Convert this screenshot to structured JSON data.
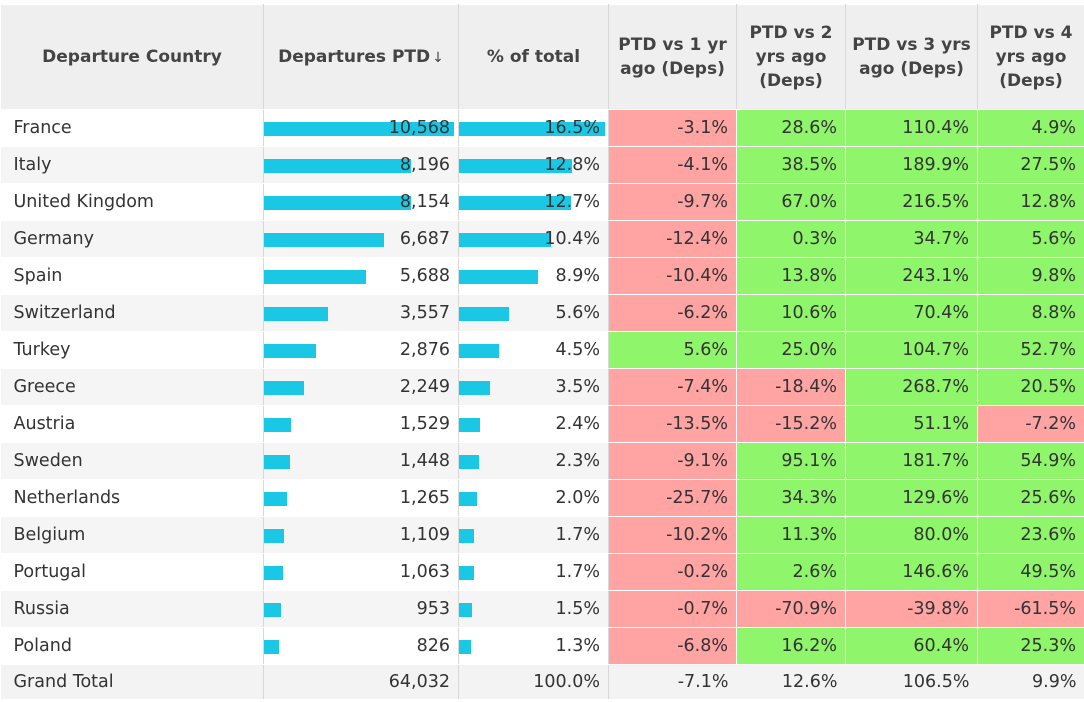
{
  "columns": {
    "country": "Departure Country",
    "departures": "Departures PTD",
    "pct_total": "% of total",
    "vs1": "PTD vs 1 yr ago (Deps)",
    "vs2": "PTD vs 2 yrs ago (Deps)",
    "vs3": "PTD vs 3 yrs ago (Deps)",
    "vs4": "PTD vs 4 yrs ago (Deps)",
    "sort_icon": "sort-descending-icon"
  },
  "rows": [
    {
      "country": "France",
      "departures": "10,568",
      "dep_value": 10568,
      "pct": "16.5%",
      "pct_value": 16.5,
      "vs1": "-3.1%",
      "vs2": "28.6%",
      "vs3": "110.4%",
      "vs4": "4.9%"
    },
    {
      "country": "Italy",
      "departures": "8,196",
      "dep_value": 8196,
      "pct": "12.8%",
      "pct_value": 12.8,
      "vs1": "-4.1%",
      "vs2": "38.5%",
      "vs3": "189.9%",
      "vs4": "27.5%"
    },
    {
      "country": "United Kingdom",
      "departures": "8,154",
      "dep_value": 8154,
      "pct": "12.7%",
      "pct_value": 12.7,
      "vs1": "-9.7%",
      "vs2": "67.0%",
      "vs3": "216.5%",
      "vs4": "12.8%"
    },
    {
      "country": "Germany",
      "departures": "6,687",
      "dep_value": 6687,
      "pct": "10.4%",
      "pct_value": 10.4,
      "vs1": "-12.4%",
      "vs2": "0.3%",
      "vs3": "34.7%",
      "vs4": "5.6%"
    },
    {
      "country": "Spain",
      "departures": "5,688",
      "dep_value": 5688,
      "pct": "8.9%",
      "pct_value": 8.9,
      "vs1": "-10.4%",
      "vs2": "13.8%",
      "vs3": "243.1%",
      "vs4": "9.8%"
    },
    {
      "country": "Switzerland",
      "departures": "3,557",
      "dep_value": 3557,
      "pct": "5.6%",
      "pct_value": 5.6,
      "vs1": "-6.2%",
      "vs2": "10.6%",
      "vs3": "70.4%",
      "vs4": "8.8%"
    },
    {
      "country": "Turkey",
      "departures": "2,876",
      "dep_value": 2876,
      "pct": "4.5%",
      "pct_value": 4.5,
      "vs1": "5.6%",
      "vs2": "25.0%",
      "vs3": "104.7%",
      "vs4": "52.7%"
    },
    {
      "country": "Greece",
      "departures": "2,249",
      "dep_value": 2249,
      "pct": "3.5%",
      "pct_value": 3.5,
      "vs1": "-7.4%",
      "vs2": "-18.4%",
      "vs3": "268.7%",
      "vs4": "20.5%"
    },
    {
      "country": "Austria",
      "departures": "1,529",
      "dep_value": 1529,
      "pct": "2.4%",
      "pct_value": 2.4,
      "vs1": "-13.5%",
      "vs2": "-15.2%",
      "vs3": "51.1%",
      "vs4": "-7.2%"
    },
    {
      "country": "Sweden",
      "departures": "1,448",
      "dep_value": 1448,
      "pct": "2.3%",
      "pct_value": 2.3,
      "vs1": "-9.1%",
      "vs2": "95.1%",
      "vs3": "181.7%",
      "vs4": "54.9%"
    },
    {
      "country": "Netherlands",
      "departures": "1,265",
      "dep_value": 1265,
      "pct": "2.0%",
      "pct_value": 2.0,
      "vs1": "-25.7%",
      "vs2": "34.3%",
      "vs3": "129.6%",
      "vs4": "25.6%"
    },
    {
      "country": "Belgium",
      "departures": "1,109",
      "dep_value": 1109,
      "pct": "1.7%",
      "pct_value": 1.7,
      "vs1": "-10.2%",
      "vs2": "11.3%",
      "vs3": "80.0%",
      "vs4": "23.6%"
    },
    {
      "country": "Portugal",
      "departures": "1,063",
      "dep_value": 1063,
      "pct": "1.7%",
      "pct_value": 1.7,
      "vs1": "-0.2%",
      "vs2": "2.6%",
      "vs3": "146.6%",
      "vs4": "49.5%"
    },
    {
      "country": "Russia",
      "departures": "953",
      "dep_value": 953,
      "pct": "1.5%",
      "pct_value": 1.5,
      "vs1": "-0.7%",
      "vs2": "-70.9%",
      "vs3": "-39.8%",
      "vs4": "-61.5%"
    },
    {
      "country": "Poland",
      "departures": "826",
      "dep_value": 826,
      "pct": "1.3%",
      "pct_value": 1.3,
      "vs1": "-6.8%",
      "vs2": "16.2%",
      "vs3": "60.4%",
      "vs4": "25.3%"
    }
  ],
  "total": {
    "country": "Grand Total",
    "departures": "64,032",
    "pct": "100.0%",
    "vs1": "-7.1%",
    "vs2": "12.6%",
    "vs3": "106.5%",
    "vs4": "9.9%"
  },
  "colors": {
    "bar": "#1ac8e6",
    "negative": "#ffa3a3",
    "positive": "#8ff56a",
    "header_bg": "#efefef"
  }
}
